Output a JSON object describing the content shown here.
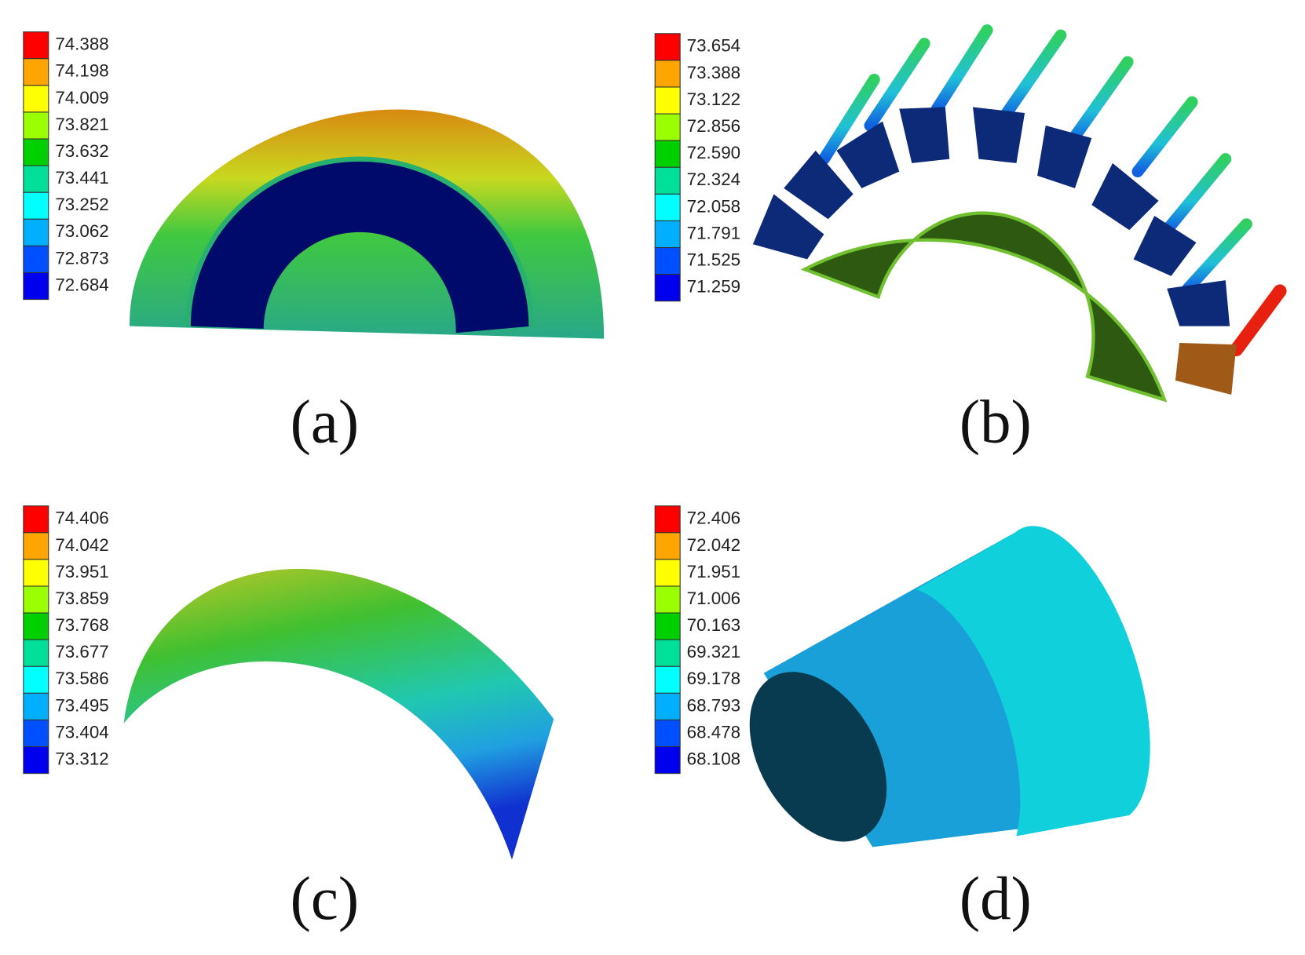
{
  "panels": [
    {
      "legend": [
        "74.388",
        "74.198",
        "74.009",
        "73.821",
        "73.632",
        "73.441",
        "73.252",
        "73.062",
        "72.873",
        "72.684"
      ],
      "caption": "(a)"
    },
    {
      "legend": [
        "73.654",
        "73.388",
        "73.122",
        "72.856",
        "72.590",
        "72.324",
        "72.058",
        "71.791",
        "71.525",
        "71.259"
      ],
      "caption": "(b)"
    },
    {
      "legend": [
        "74.406",
        "74.042",
        "73.951",
        "73.859",
        "73.768",
        "73.677",
        "73.586",
        "73.495",
        "73.404",
        "73.312"
      ],
      "caption": "(c)"
    },
    {
      "legend": [
        "72.406",
        "72.042",
        "71.951",
        "71.006",
        "70.163",
        "69.321",
        "69.178",
        "68.793",
        "68.478",
        "68.108"
      ],
      "caption": "(d)"
    }
  ]
}
